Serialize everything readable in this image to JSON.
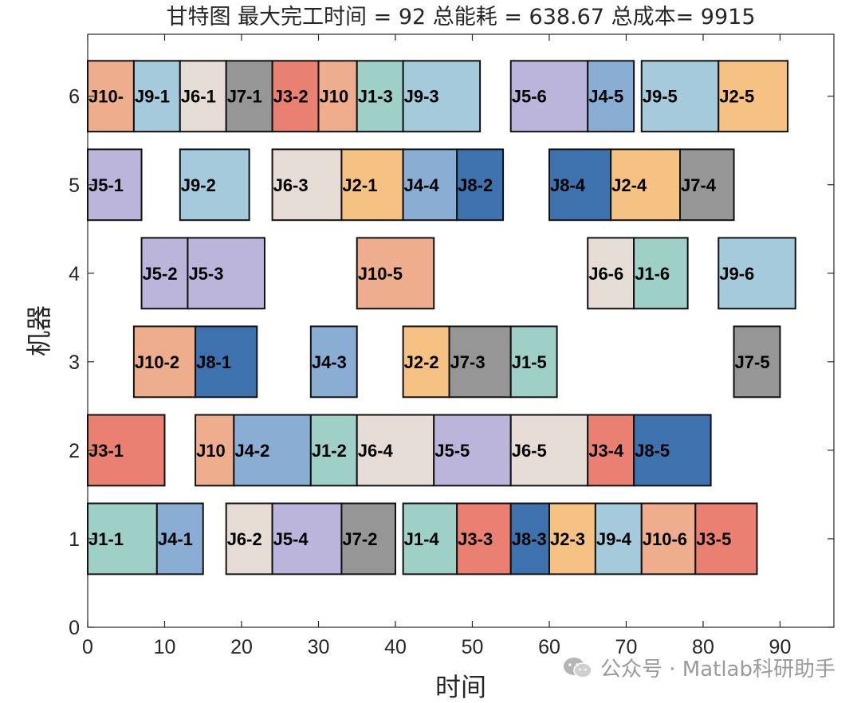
{
  "chart_data": {
    "type": "gantt",
    "title": "甘特图 最大完工时间 = 92 总能耗 = 638.67 总成本= 9915",
    "xlabel": "时间",
    "ylabel": "机器",
    "xlim": [
      0,
      97
    ],
    "ylim": [
      0,
      6.7
    ],
    "xticks": [
      "0",
      "10",
      "20",
      "30",
      "40",
      "50",
      "60",
      "70",
      "80",
      "90"
    ],
    "yticks": [
      "0",
      "1",
      "2",
      "3",
      "4",
      "5",
      "6"
    ],
    "tasks": [
      {
        "machine": 6,
        "start": 0,
        "end": 6,
        "label": "J10-",
        "job": "J10"
      },
      {
        "machine": 6,
        "start": 6,
        "end": 12,
        "label": "J9-1",
        "job": "J9"
      },
      {
        "machine": 6,
        "start": 12,
        "end": 18,
        "label": "J6-1",
        "job": "J6"
      },
      {
        "machine": 6,
        "start": 18,
        "end": 24,
        "label": "J7-1",
        "job": "J7"
      },
      {
        "machine": 6,
        "start": 24,
        "end": 30,
        "label": "J3-2",
        "job": "J3"
      },
      {
        "machine": 6,
        "start": 30,
        "end": 35,
        "label": "J10",
        "job": "J10"
      },
      {
        "machine": 6,
        "start": 35,
        "end": 41,
        "label": "J1-3",
        "job": "J1"
      },
      {
        "machine": 6,
        "start": 41,
        "end": 51,
        "label": "J9-3",
        "job": "J9"
      },
      {
        "machine": 6,
        "start": 55,
        "end": 65,
        "label": "J5-6",
        "job": "J5"
      },
      {
        "machine": 6,
        "start": 65,
        "end": 71,
        "label": "J4-5",
        "job": "J4"
      },
      {
        "machine": 6,
        "start": 72,
        "end": 82,
        "label": "J9-5",
        "job": "J9"
      },
      {
        "machine": 6,
        "start": 82,
        "end": 91,
        "label": "J2-5",
        "job": "J2"
      },
      {
        "machine": 5,
        "start": 0,
        "end": 7,
        "label": "J5-1",
        "job": "J5"
      },
      {
        "machine": 5,
        "start": 12,
        "end": 21,
        "label": "J9-2",
        "job": "J9"
      },
      {
        "machine": 5,
        "start": 24,
        "end": 33,
        "label": "J6-3",
        "job": "J6"
      },
      {
        "machine": 5,
        "start": 33,
        "end": 41,
        "label": "J2-1",
        "job": "J2"
      },
      {
        "machine": 5,
        "start": 41,
        "end": 48,
        "label": "J4-4",
        "job": "J4"
      },
      {
        "machine": 5,
        "start": 48,
        "end": 54,
        "label": "J8-2",
        "job": "J8"
      },
      {
        "machine": 5,
        "start": 60,
        "end": 68,
        "label": "J8-4",
        "job": "J8"
      },
      {
        "machine": 5,
        "start": 68,
        "end": 77,
        "label": "J2-4",
        "job": "J2"
      },
      {
        "machine": 5,
        "start": 77,
        "end": 84,
        "label": "J7-4",
        "job": "J7"
      },
      {
        "machine": 4,
        "start": 7,
        "end": 13,
        "label": "J5-2",
        "job": "J5"
      },
      {
        "machine": 4,
        "start": 13,
        "end": 23,
        "label": "J5-3",
        "job": "J5"
      },
      {
        "machine": 4,
        "start": 35,
        "end": 45,
        "label": "J10-5",
        "job": "J10"
      },
      {
        "machine": 4,
        "start": 65,
        "end": 71,
        "label": "J6-6",
        "job": "J6"
      },
      {
        "machine": 4,
        "start": 71,
        "end": 78,
        "label": "J1-6",
        "job": "J1"
      },
      {
        "machine": 4,
        "start": 82,
        "end": 92,
        "label": "J9-6",
        "job": "J9"
      },
      {
        "machine": 3,
        "start": 6,
        "end": 14,
        "label": "J10-2",
        "job": "J10"
      },
      {
        "machine": 3,
        "start": 14,
        "end": 22,
        "label": "J8-1",
        "job": "J8"
      },
      {
        "machine": 3,
        "start": 29,
        "end": 35,
        "label": "J4-3",
        "job": "J4"
      },
      {
        "machine": 3,
        "start": 41,
        "end": 47,
        "label": "J2-2",
        "job": "J2"
      },
      {
        "machine": 3,
        "start": 47,
        "end": 55,
        "label": "J7-3",
        "job": "J7"
      },
      {
        "machine": 3,
        "start": 55,
        "end": 61,
        "label": "J1-5",
        "job": "J1"
      },
      {
        "machine": 3,
        "start": 84,
        "end": 90,
        "label": "J7-5",
        "job": "J7"
      },
      {
        "machine": 2,
        "start": 0,
        "end": 10,
        "label": "J3-1",
        "job": "J3"
      },
      {
        "machine": 2,
        "start": 14,
        "end": 19,
        "label": "J10",
        "job": "J10"
      },
      {
        "machine": 2,
        "start": 19,
        "end": 29,
        "label": "J4-2",
        "job": "J4"
      },
      {
        "machine": 2,
        "start": 29,
        "end": 35,
        "label": "J1-2",
        "job": "J1"
      },
      {
        "machine": 2,
        "start": 35,
        "end": 45,
        "label": "J6-4",
        "job": "J6"
      },
      {
        "machine": 2,
        "start": 45,
        "end": 55,
        "label": "J5-5",
        "job": "J5"
      },
      {
        "machine": 2,
        "start": 55,
        "end": 65,
        "label": "J6-5",
        "job": "J6"
      },
      {
        "machine": 2,
        "start": 65,
        "end": 71,
        "label": "J3-4",
        "job": "J3"
      },
      {
        "machine": 2,
        "start": 71,
        "end": 81,
        "label": "J8-5",
        "job": "J8"
      },
      {
        "machine": 1,
        "start": 0,
        "end": 9,
        "label": "J1-1",
        "job": "J1"
      },
      {
        "machine": 1,
        "start": 9,
        "end": 15,
        "label": "J4-1",
        "job": "J4"
      },
      {
        "machine": 1,
        "start": 18,
        "end": 24,
        "label": "J6-2",
        "job": "J6"
      },
      {
        "machine": 1,
        "start": 24,
        "end": 33,
        "label": "J5-4",
        "job": "J5"
      },
      {
        "machine": 1,
        "start": 33,
        "end": 40,
        "label": "J7-2",
        "job": "J7"
      },
      {
        "machine": 1,
        "start": 41,
        "end": 48,
        "label": "J1-4",
        "job": "J1"
      },
      {
        "machine": 1,
        "start": 48,
        "end": 55,
        "label": "J3-3",
        "job": "J3"
      },
      {
        "machine": 1,
        "start": 55,
        "end": 60,
        "label": "J8-3",
        "job": "J8"
      },
      {
        "machine": 1,
        "start": 60,
        "end": 66,
        "label": "J2-3",
        "job": "J2"
      },
      {
        "machine": 1,
        "start": 66,
        "end": 72,
        "label": "J9-4",
        "job": "J9"
      },
      {
        "machine": 1,
        "start": 72,
        "end": 79,
        "label": "J10-6",
        "job": "J10"
      },
      {
        "machine": 1,
        "start": 79,
        "end": 87,
        "label": "J3-5",
        "job": "J3"
      }
    ],
    "job_colors": {
      "J1": "#9ed0c8",
      "J2": "#f6c283",
      "J3": "#ea8072",
      "J4": "#8aadd3",
      "J5": "#bcb5db",
      "J6": "#e6dcd6",
      "J7": "#969696",
      "J8": "#3e72ae",
      "J9": "#a4cadc",
      "J10": "#eeae8e"
    }
  },
  "watermark": {
    "text": "公众号 · Matlab科研助手",
    "icon": "wechat-icon"
  }
}
